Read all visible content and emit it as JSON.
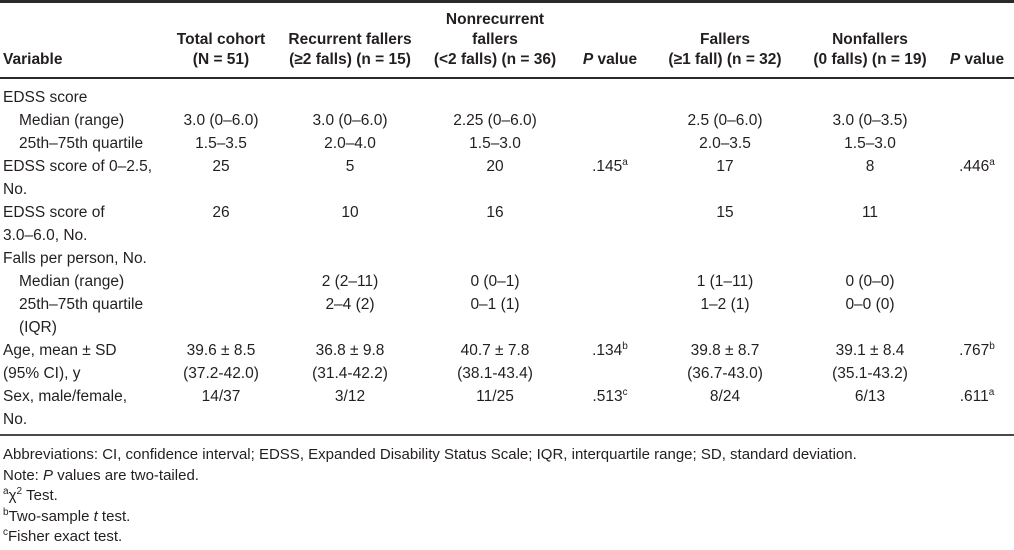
{
  "table": {
    "columns": [
      {
        "label": "Variable"
      },
      {
        "label": "Total cohort\n(N = 51)"
      },
      {
        "label": "Recurrent fallers\n(≥2 falls) (n = 15)"
      },
      {
        "label": "Nonrecurrent\nfallers\n(<2 falls) (n = 36)"
      },
      {
        "p": "P",
        "rest": " value"
      },
      {
        "label": "Fallers\n(≥1 fall) (n = 32)"
      },
      {
        "label": "Nonfallers\n(0 falls) (n = 19)"
      },
      {
        "p": "P",
        "rest": " value"
      }
    ],
    "rows": [
      {
        "label": "EDSS score",
        "indent": 0,
        "cells": [
          "",
          "",
          "",
          "",
          "",
          "",
          ""
        ]
      },
      {
        "label": "Median (range)",
        "indent": 1,
        "cells": [
          "3.0 (0–6.0)",
          "3.0 (0–6.0)",
          "2.25 (0–6.0)",
          "",
          "2.5 (0–6.0)",
          "3.0 (0–3.5)",
          ""
        ]
      },
      {
        "label": "25th–75th quartile",
        "indent": 1,
        "cells": [
          "1.5–3.5",
          "2.0–4.0",
          "1.5–3.0",
          "",
          "2.0–3.5",
          "1.5–3.0",
          ""
        ]
      },
      {
        "label": "EDSS score of 0–2.5,\nNo.",
        "indent": 0,
        "cells": [
          "25",
          "5",
          "20",
          {
            "text": ".145",
            "sup": "a"
          },
          "17",
          "8",
          {
            "text": ".446",
            "sup": "a"
          }
        ]
      },
      {
        "label": "EDSS score of\n3.0–6.0, No.",
        "indent": 0,
        "cells": [
          "26",
          "10",
          "16",
          "",
          "15",
          "11",
          ""
        ]
      },
      {
        "label": "Falls per person, No.",
        "indent": 0,
        "cells": [
          "",
          "",
          "",
          "",
          "",
          "",
          ""
        ]
      },
      {
        "label": "Median (range)",
        "indent": 1,
        "cells": [
          "",
          "2 (2–11)",
          "0 (0–1)",
          "",
          "1 (1–11)",
          "0 (0–0)",
          ""
        ]
      },
      {
        "label": "25th–75th quartile\n(IQR)",
        "indent": 1,
        "cells": [
          "",
          "2–4 (2)",
          "0–1 (1)",
          "",
          "1–2 (1)",
          "0–0 (0)",
          ""
        ]
      },
      {
        "label": "Age, mean ± SD\n(95% CI), y",
        "indent": 0,
        "cells": [
          "39.6 ± 8.5\n(37.2-42.0)",
          "36.8 ± 9.8\n(31.4-42.2)",
          "40.7 ± 7.8\n(38.1-43.4)",
          {
            "text": ".134",
            "sup": "b"
          },
          "39.8 ± 8.7\n(36.7-43.0)",
          "39.1 ± 8.4\n(35.1-43.2)",
          {
            "text": ".767",
            "sup": "b"
          }
        ]
      },
      {
        "label": "Sex, male/female,\nNo.",
        "indent": 0,
        "cells": [
          "14/37",
          "3/12",
          "11/25",
          {
            "text": ".513",
            "sup": "c"
          },
          "8/24",
          "6/13",
          {
            "text": ".611",
            "sup": "a"
          }
        ]
      }
    ]
  },
  "footnotes": {
    "abbreviations": "Abbreviations: CI, confidence interval; EDSS, Expanded Disability Status Scale; IQR, interquartile range; SD, standard deviation.",
    "note_prefix": "Note: ",
    "note_p": "P",
    "note_suffix": " values are two-tailed.",
    "a_marker": "a",
    "a_chi": "χ",
    "a_sup2": "2",
    "a_text": " Test.",
    "b_marker": "b",
    "b_pre": "Two-sample ",
    "b_italic": "t",
    "b_post": " test.",
    "c_marker": "c",
    "c_text": "Fisher exact test."
  }
}
